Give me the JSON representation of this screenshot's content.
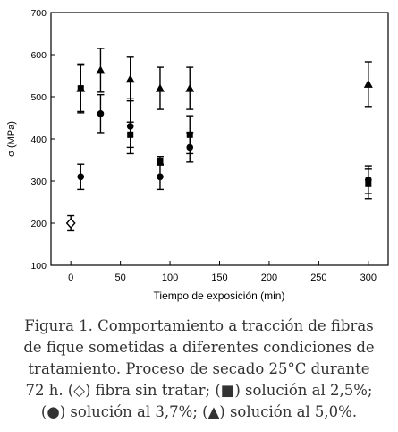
{
  "chart_data": {
    "type": "scatter",
    "xlabel": "Tiempo de exposición (min)",
    "ylabel": "σ (MPa)",
    "xlim": [
      -20,
      320
    ],
    "ylim": [
      100,
      700
    ],
    "x_ticks": [
      0,
      50,
      100,
      150,
      200,
      250,
      300
    ],
    "y_ticks": [
      100,
      200,
      300,
      400,
      500,
      600,
      700
    ],
    "grid": false,
    "series": [
      {
        "marker": "diamond",
        "points": [
          {
            "x": 0,
            "y": 200,
            "err": 18
          }
        ]
      },
      {
        "marker": "square",
        "points": [
          {
            "x": 10,
            "y": 520,
            "err": 58
          },
          {
            "x": 60,
            "y": 410,
            "err": 30
          },
          {
            "x": 90,
            "y": 348,
            "err": 10
          },
          {
            "x": 120,
            "y": 410,
            "err": 45
          },
          {
            "x": 300,
            "y": 293,
            "err": 35
          }
        ]
      },
      {
        "marker": "circle",
        "points": [
          {
            "x": 10,
            "y": 310,
            "err": 30
          },
          {
            "x": 30,
            "y": 460,
            "err": 45
          },
          {
            "x": 60,
            "y": 430,
            "err": 65
          },
          {
            "x": 90,
            "y": 310,
            "err": 30
          },
          {
            "x": 120,
            "y": 380,
            "err": 35
          },
          {
            "x": 300,
            "y": 303,
            "err": 33
          }
        ]
      },
      {
        "marker": "triangle",
        "points": [
          {
            "x": 10,
            "y": 520,
            "err": 55
          },
          {
            "x": 30,
            "y": 563,
            "err": 52
          },
          {
            "x": 60,
            "y": 542,
            "err": 52
          },
          {
            "x": 90,
            "y": 520,
            "err": 50
          },
          {
            "x": 120,
            "y": 520,
            "err": 50
          },
          {
            "x": 300,
            "y": 530,
            "err": 53
          }
        ]
      }
    ]
  },
  "caption": "Figura 1. Comportamiento a tracción de fibras\nde fique sometidas a diferentes condiciones de\ntratamiento. Proceso de secado 25°C durante\n72 h. (◇) fibra sin tratar; (■) solución al 2,5%;\n(●) solución al 3,7%; (▲) solución al 5,0%."
}
